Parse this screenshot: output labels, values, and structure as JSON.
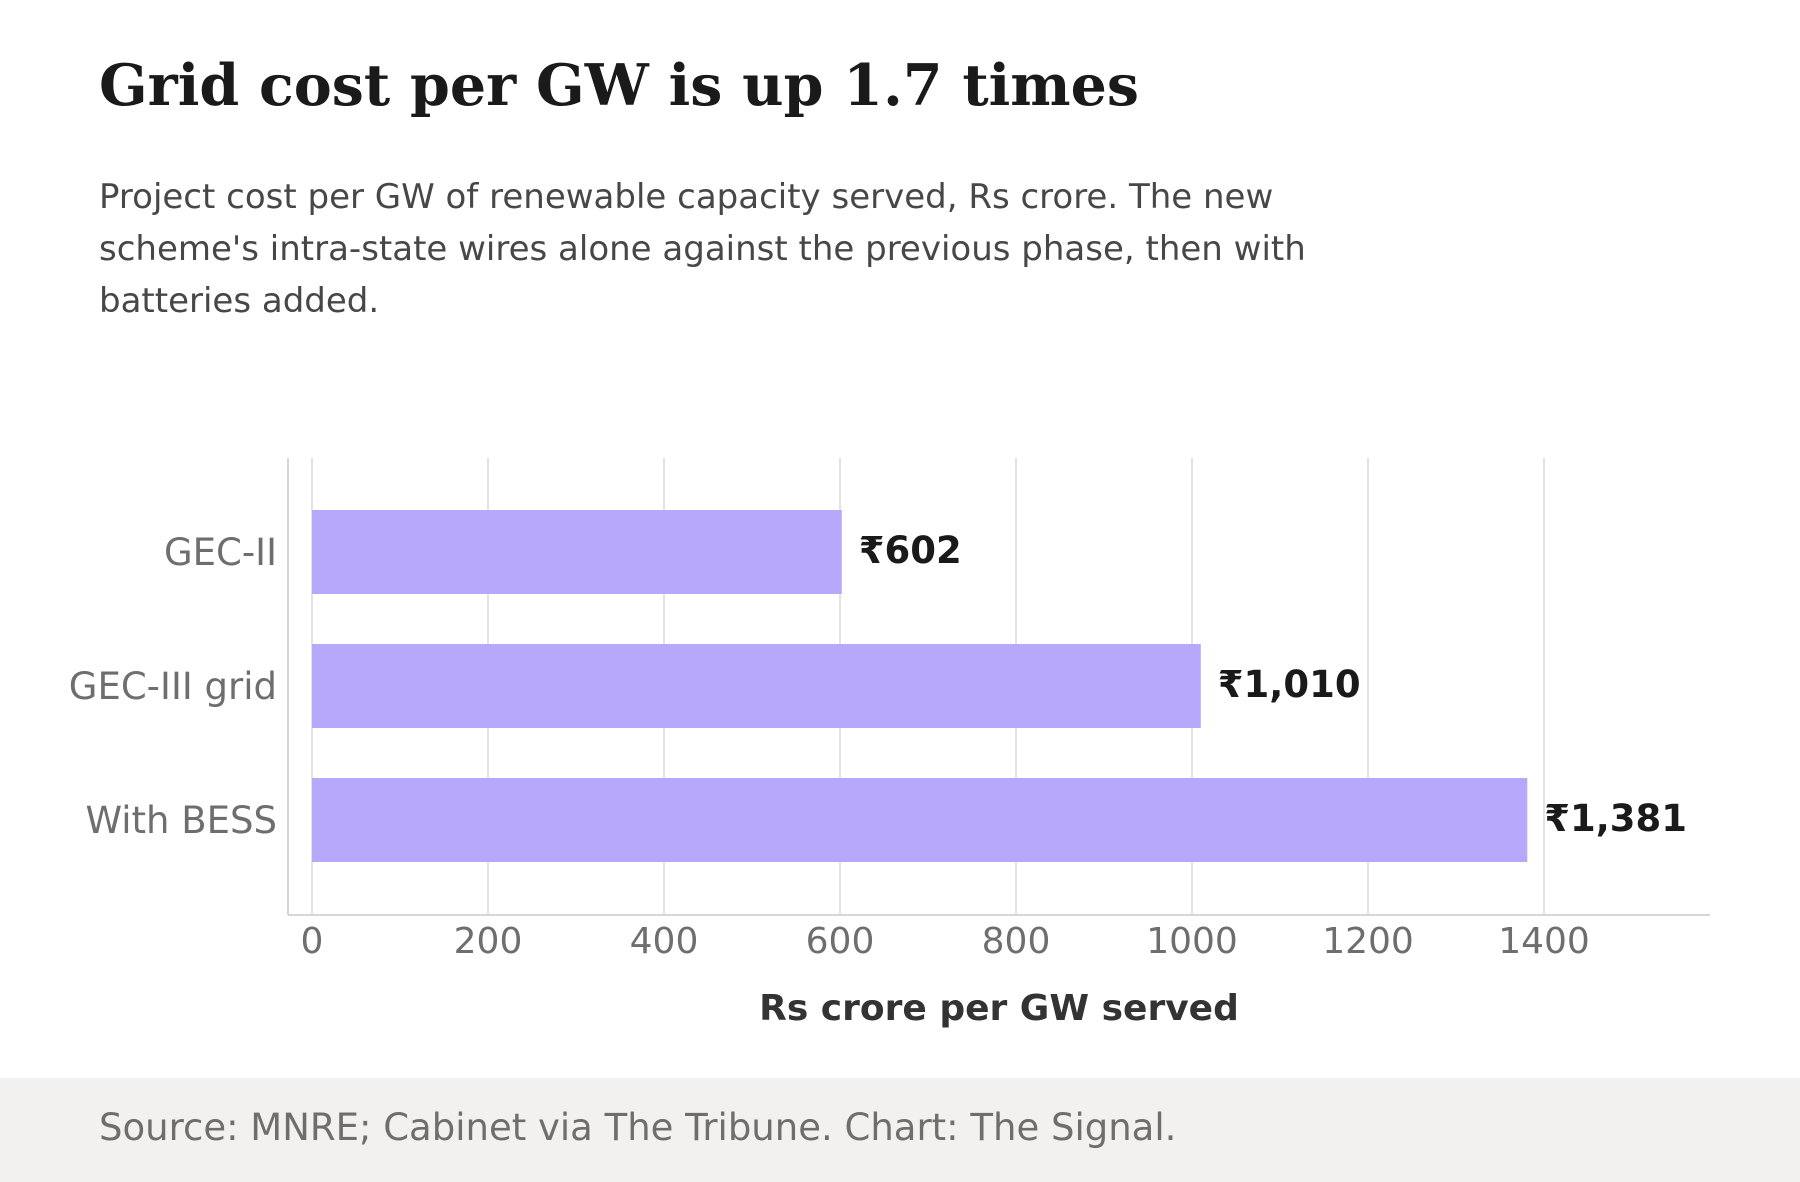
{
  "header": {
    "title": "Grid cost per GW is up 1.7 times",
    "subtitle": "Project cost per GW of renewable capacity served, Rs crore. The new scheme's intra-state wires alone against the previous phase, then with batteries added."
  },
  "chart_data": {
    "type": "bar",
    "orientation": "horizontal",
    "categories": [
      "GEC-II",
      "GEC-III grid",
      "With BESS"
    ],
    "values": [
      602,
      1010,
      1381
    ],
    "value_labels": [
      "₹602",
      "₹1,010",
      "₹1,381"
    ],
    "xlabel": "Rs crore per GW served",
    "ylabel": "",
    "xlim": [
      0,
      1600
    ],
    "xticks": [
      "0",
      "200",
      "400",
      "600",
      "800",
      "1000",
      "1200",
      "1400"
    ],
    "grid": "vertical",
    "bar_color": "#b8a8fc",
    "legend": "none"
  },
  "footer": {
    "source": "Source: MNRE; Cabinet via The Tribune. Chart: The Signal."
  }
}
